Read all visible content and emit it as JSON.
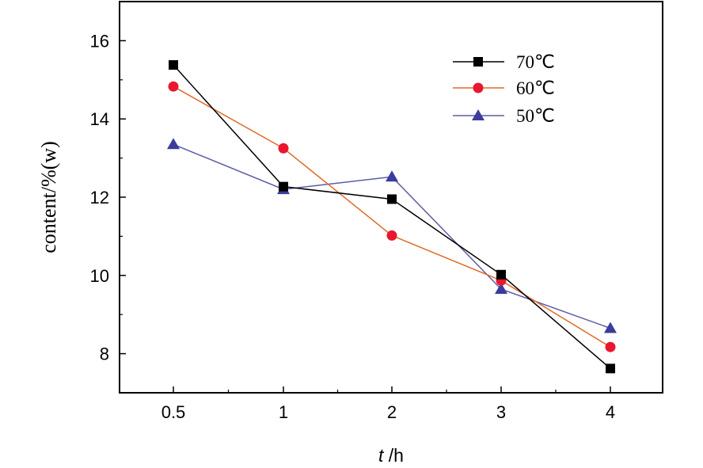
{
  "chart_data": {
    "type": "line",
    "categories": [
      "0.5",
      "1",
      "2",
      "3",
      "4"
    ],
    "xlabel_italic": "t",
    "xlabel_rest": " /h",
    "ylabel": "content/%(w)",
    "ylim": [
      7,
      17
    ],
    "yticks": [
      8,
      10,
      12,
      14,
      16
    ],
    "grid": false,
    "legend_position": "top-right",
    "series": [
      {
        "name": "70℃",
        "color": "#000000",
        "marker": "square",
        "values": [
          15.38,
          12.27,
          11.95,
          10.02,
          7.62
        ]
      },
      {
        "name": "60℃",
        "color": "#e8172f",
        "line_color": "#e06a2a",
        "marker": "circle",
        "values": [
          14.83,
          13.25,
          11.02,
          9.87,
          8.17
        ]
      },
      {
        "name": "50℃",
        "color": "#3c3c9c",
        "line_color": "#5b5ba8",
        "marker": "triangle",
        "values": [
          13.35,
          12.2,
          12.52,
          9.65,
          8.65
        ]
      }
    ]
  }
}
